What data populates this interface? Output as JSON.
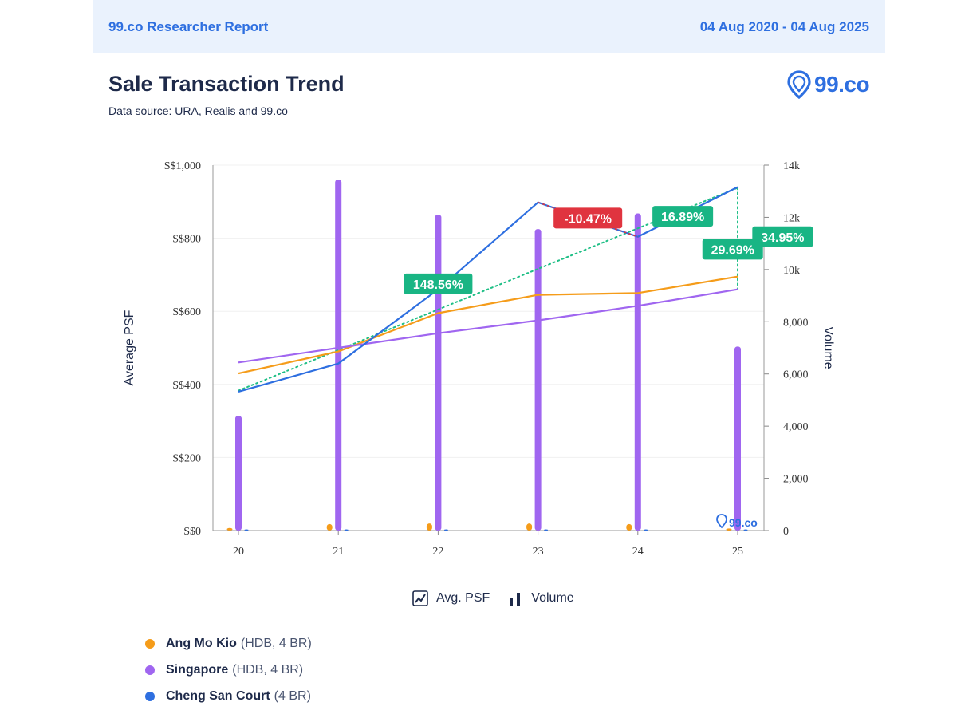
{
  "header": {
    "report_title": "99.co Researcher Report",
    "date_range": "04 Aug 2020 - 04 Aug 2025"
  },
  "title": "Sale Transaction Trend",
  "subtitle": "Data source: URA, Realis and 99.co",
  "logo_text": "99.co",
  "watermark_text": "99.co",
  "toggles": {
    "avg_psf": "Avg. PSF",
    "volume": "Volume"
  },
  "legend": [
    {
      "name": "Ang Mo Kio",
      "detail": "(HDB, 4 BR)",
      "color": "#f59c1a"
    },
    {
      "name": "Singapore",
      "detail": "(HDB, 4 BR)",
      "color": "#a066f0"
    },
    {
      "name": "Cheng San Court",
      "detail": "(4 BR)",
      "color": "#2e6fe0"
    }
  ],
  "chart_data": {
    "type": "line",
    "x": [
      "20",
      "21",
      "22",
      "23",
      "24",
      "25"
    ],
    "ylabel": "Average PSF",
    "ylabel_right": "Volume",
    "ylim": [
      0,
      1000
    ],
    "ylim_right": [
      0,
      14000
    ],
    "y_ticks": [
      "S$0",
      "S$200",
      "S$400",
      "S$600",
      "S$800",
      "S$1,000"
    ],
    "y_right_ticks": [
      "0",
      "2,000",
      "4,000",
      "6,000",
      "8,000",
      "10k",
      "12k",
      "14k"
    ],
    "series": [
      {
        "name": "Ang Mo Kio",
        "color": "#f59c1a",
        "values": [
          430,
          490,
          595,
          645,
          650,
          695
        ]
      },
      {
        "name": "Singapore",
        "color": "#a066f0",
        "values": [
          460,
          500,
          540,
          575,
          615,
          660
        ]
      },
      {
        "name": "Cheng San Court",
        "color": "#2e6fe0",
        "values": [
          380,
          457,
          660,
          898,
          804,
          940
        ]
      }
    ],
    "volume_series": [
      {
        "name": "Ang Mo Kio",
        "color": "#f59c1a",
        "values": [
          100,
          250,
          270,
          270,
          250,
          80
        ]
      },
      {
        "name": "Singapore",
        "color": "#a066f0",
        "values": [
          4400,
          13450,
          12100,
          11550,
          12150,
          7050
        ]
      },
      {
        "name": "Cheng San Court",
        "color": "#2e6fe0",
        "values": [
          5,
          10,
          15,
          25,
          10,
          10
        ]
      }
    ],
    "trendline": {
      "color": "#1fbf86",
      "from": [
        0,
        383
      ],
      "to": [
        5,
        938
      ]
    },
    "annotations": [
      {
        "text": "148.56%",
        "color": "#19b584",
        "x": 2,
        "y": 675
      },
      {
        "text": "-10.47%",
        "color": "#e0343f",
        "x": 3.5,
        "y": 855
      },
      {
        "text": "16.89%",
        "color": "#19b584",
        "x": 4.45,
        "y": 860
      },
      {
        "text": "34.95%",
        "color": "#19b584",
        "x": 5.45,
        "y": 804
      },
      {
        "text": "29.69%",
        "color": "#19b584",
        "x": 4.95,
        "y": 770
      }
    ]
  }
}
